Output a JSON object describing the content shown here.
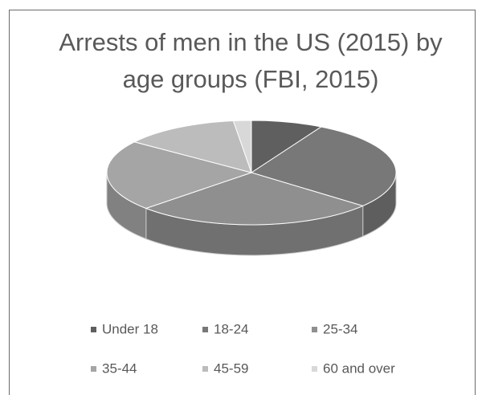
{
  "chart_data": {
    "type": "pie3d",
    "title": "Arrests of men in the US (2015) by age groups (FBI, 2015)",
    "categories": [
      "Under 18",
      "18-24",
      "25-34",
      "35-44",
      "45-59",
      "60 and over"
    ],
    "values": [
      8,
      28,
      27,
      22,
      13,
      2
    ],
    "colors": [
      "#5f5f5f",
      "#787878",
      "#8f8f8f",
      "#a5a5a5",
      "#bcbcbc",
      "#d8d8d8"
    ],
    "legend": "bottom"
  }
}
